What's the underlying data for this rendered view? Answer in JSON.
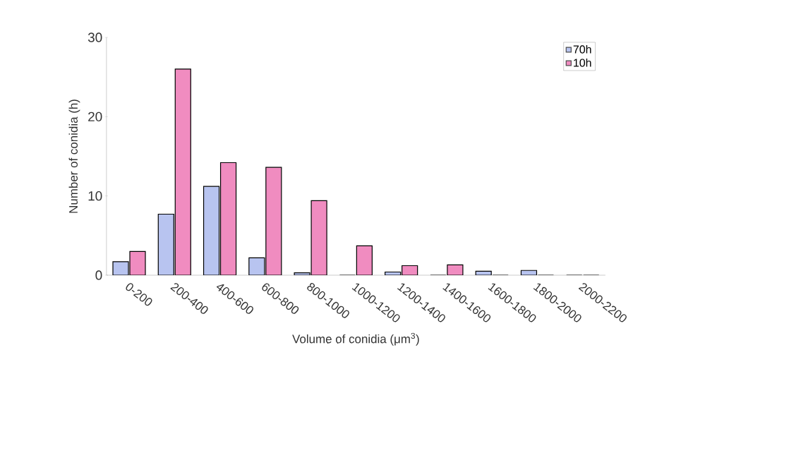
{
  "chart_data": {
    "type": "bar",
    "xlabel": "Volume of conidia (μm$^{3}$)",
    "ylabel": "Number of conidia (h)",
    "categories": [
      "0-200",
      "200-400",
      "400-600",
      "600-800",
      "800-1000",
      "1000-1200",
      "1200-1400",
      "1400-1600",
      "1600-1800",
      "1800-2000",
      "2000-2200"
    ],
    "series": [
      {
        "name": "70h",
        "color": "#b8c4f0",
        "values": [
          1.7,
          7.7,
          11.2,
          2.2,
          0.3,
          0,
          0.4,
          0,
          0.5,
          0.6,
          0
        ]
      },
      {
        "name": "10h",
        "color": "#f08cc0",
        "values": [
          3,
          26,
          14.2,
          13.6,
          9.4,
          3.7,
          1.2,
          1.3,
          0,
          0,
          0
        ]
      }
    ],
    "ylim": [
      0,
      30
    ],
    "yticks": [
      0,
      10,
      20,
      30
    ],
    "grid": false,
    "legend": "top right"
  }
}
